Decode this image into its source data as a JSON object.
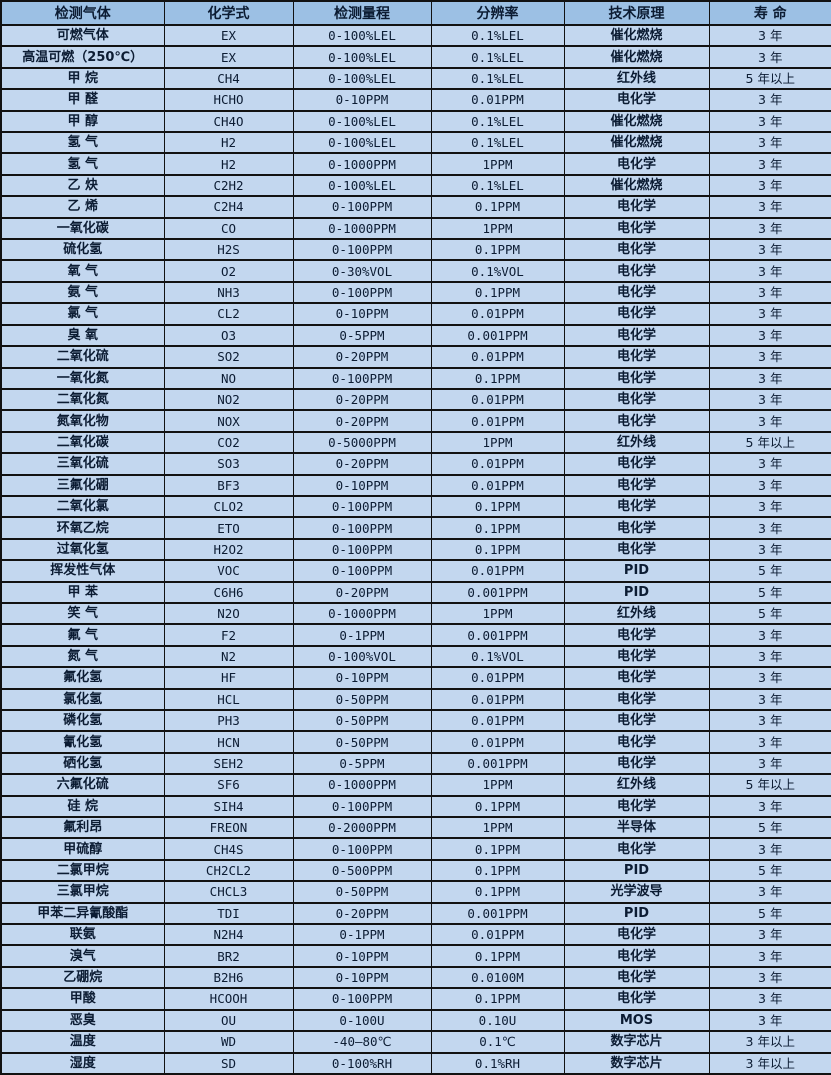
{
  "table": {
    "title": "gas-sensor-specification-table",
    "headers": [
      "检测气体",
      "化学式",
      "检测量程",
      "分辨率",
      "技术原理",
      "寿 命"
    ],
    "rows": [
      [
        "可燃气体",
        "EX",
        "0-100%LEL",
        "0.1%LEL",
        "催化燃烧",
        "3 年"
      ],
      [
        "高温可燃（250℃）",
        "EX",
        "0-100%LEL",
        "0.1%LEL",
        "催化燃烧",
        "3 年"
      ],
      [
        "甲 烷",
        "CH4",
        "0-100%LEL",
        "0.1%LEL",
        "红外线",
        "5 年以上"
      ],
      [
        "甲 醛",
        "HCHO",
        "0-10PPM",
        "0.01PPM",
        "电化学",
        "3 年"
      ],
      [
        "甲 醇",
        "CH4O",
        "0-100%LEL",
        "0.1%LEL",
        "催化燃烧",
        "3 年"
      ],
      [
        "氢 气",
        "H2",
        "0-100%LEL",
        "0.1%LEL",
        "催化燃烧",
        "3 年"
      ],
      [
        "氢 气",
        "H2",
        "0-1000PPM",
        "1PPM",
        "电化学",
        "3 年"
      ],
      [
        "乙 炔",
        "C2H2",
        "0-100%LEL",
        "0.1%LEL",
        "催化燃烧",
        "3 年"
      ],
      [
        "乙 烯",
        "C2H4",
        "0-100PPM",
        "0.1PPM",
        "电化学",
        "3 年"
      ],
      [
        "一氧化碳",
        "CO",
        "0-1000PPM",
        "1PPM",
        "电化学",
        "3 年"
      ],
      [
        "硫化氢",
        "H2S",
        "0-100PPM",
        "0.1PPM",
        "电化学",
        "3 年"
      ],
      [
        "氧 气",
        "O2",
        "0-30%VOL",
        "0.1%VOL",
        "电化学",
        "3 年"
      ],
      [
        "氨 气",
        "NH3",
        "0-100PPM",
        "0.1PPM",
        "电化学",
        "3 年"
      ],
      [
        "氯 气",
        "CL2",
        "0-10PPM",
        "0.01PPM",
        "电化学",
        "3 年"
      ],
      [
        "臭 氧",
        "O3",
        "0-5PPM",
        "0.001PPM",
        "电化学",
        "3 年"
      ],
      [
        "二氧化硫",
        "SO2",
        "0-20PPM",
        "0.01PPM",
        "电化学",
        "3 年"
      ],
      [
        "一氧化氮",
        "NO",
        "0-100PPM",
        "0.1PPM",
        "电化学",
        "3 年"
      ],
      [
        "二氧化氮",
        "NO2",
        "0-20PPM",
        "0.01PPM",
        "电化学",
        "3 年"
      ],
      [
        "氮氧化物",
        "NOX",
        "0-20PPM",
        "0.01PPM",
        "电化学",
        "3 年"
      ],
      [
        "二氧化碳",
        "CO2",
        "0-5000PPM",
        "1PPM",
        "红外线",
        "5 年以上"
      ],
      [
        "三氧化硫",
        "SO3",
        "0-20PPM",
        "0.01PPM",
        "电化学",
        "3 年"
      ],
      [
        "三氟化硼",
        "BF3",
        "0-10PPM",
        "0.01PPM",
        "电化学",
        "3 年"
      ],
      [
        "二氧化氯",
        "CLO2",
        "0-100PPM",
        "0.1PPM",
        "电化学",
        "3 年"
      ],
      [
        "环氧乙烷",
        "ETO",
        "0-100PPM",
        "0.1PPM",
        "电化学",
        "3 年"
      ],
      [
        "过氧化氢",
        "H2O2",
        "0-100PPM",
        "0.1PPM",
        "电化学",
        "3 年"
      ],
      [
        "挥发性气体",
        "VOC",
        "0-100PPM",
        "0.01PPM",
        "PID",
        "5 年"
      ],
      [
        "甲 苯",
        "C6H6",
        "0-20PPM",
        "0.001PPM",
        "PID",
        "5 年"
      ],
      [
        "笑 气",
        "N2O",
        "0-1000PPM",
        "1PPM",
        "红外线",
        "5 年"
      ],
      [
        "氟 气",
        "F2",
        "0-1PPM",
        "0.001PPM",
        "电化学",
        "3 年"
      ],
      [
        "氮 气",
        "N2",
        "0-100%VOL",
        "0.1%VOL",
        "电化学",
        "3 年"
      ],
      [
        "氟化氢",
        "HF",
        "0-10PPM",
        "0.01PPM",
        "电化学",
        "3 年"
      ],
      [
        "氯化氢",
        "HCL",
        "0-50PPM",
        "0.01PPM",
        "电化学",
        "3 年"
      ],
      [
        "磷化氢",
        "PH3",
        "0-50PPM",
        "0.01PPM",
        "电化学",
        "3 年"
      ],
      [
        "氰化氢",
        "HCN",
        "0-50PPM",
        "0.01PPM",
        "电化学",
        "3 年"
      ],
      [
        "硒化氢",
        "SEH2",
        "0-5PPM",
        "0.001PPM",
        "电化学",
        "3 年"
      ],
      [
        "六氟化硫",
        "SF6",
        "0-1000PPM",
        "1PPM",
        "红外线",
        "5 年以上"
      ],
      [
        "硅 烷",
        "SIH4",
        "0-100PPM",
        "0.1PPM",
        "电化学",
        "3 年"
      ],
      [
        "氟利昂",
        "FREON",
        "0-2000PPM",
        "1PPM",
        "半导体",
        "5 年"
      ],
      [
        "甲硫醇",
        "CH4S",
        "0-100PPM",
        "0.1PPM",
        "电化学",
        "3 年"
      ],
      [
        "二氯甲烷",
        "CH2CL2",
        "0-500PPM",
        "0.1PPM",
        "PID",
        "5 年"
      ],
      [
        "三氯甲烷",
        "CHCL3",
        "0-50PPM",
        "0.1PPM",
        "光学波导",
        "3 年"
      ],
      [
        "甲苯二异氰酸酯",
        "TDI",
        "0-20PPM",
        "0.001PPM",
        "PID",
        "5 年"
      ],
      [
        "联氨",
        "N2H4",
        "0-1PPM",
        "0.01PPM",
        "电化学",
        "3 年"
      ],
      [
        "溴气",
        "BR2",
        "0-10PPM",
        "0.1PPM",
        "电化学",
        "3 年"
      ],
      [
        "乙硼烷",
        "B2H6",
        "0-10PPM",
        "0.0100M",
        "电化学",
        "3 年"
      ],
      [
        "甲酸",
        "HCOOH",
        "0-100PPM",
        "0.1PPM",
        "电化学",
        "3 年"
      ],
      [
        "恶臭",
        "OU",
        "0-100U",
        "0.10U",
        "MOS",
        "3 年"
      ],
      [
        "温度",
        "WD",
        "-40—80℃",
        "0.1℃",
        "数字芯片",
        "3 年以上"
      ],
      [
        "湿度",
        "SD",
        "0-100%RH",
        "0.1%RH",
        "数字芯片",
        "3 年以上"
      ]
    ]
  },
  "colors": {
    "header_bg": "#9cc0e4",
    "row_bg": "#c3d7ef",
    "border": "#121212",
    "text": "#0c1c33"
  }
}
